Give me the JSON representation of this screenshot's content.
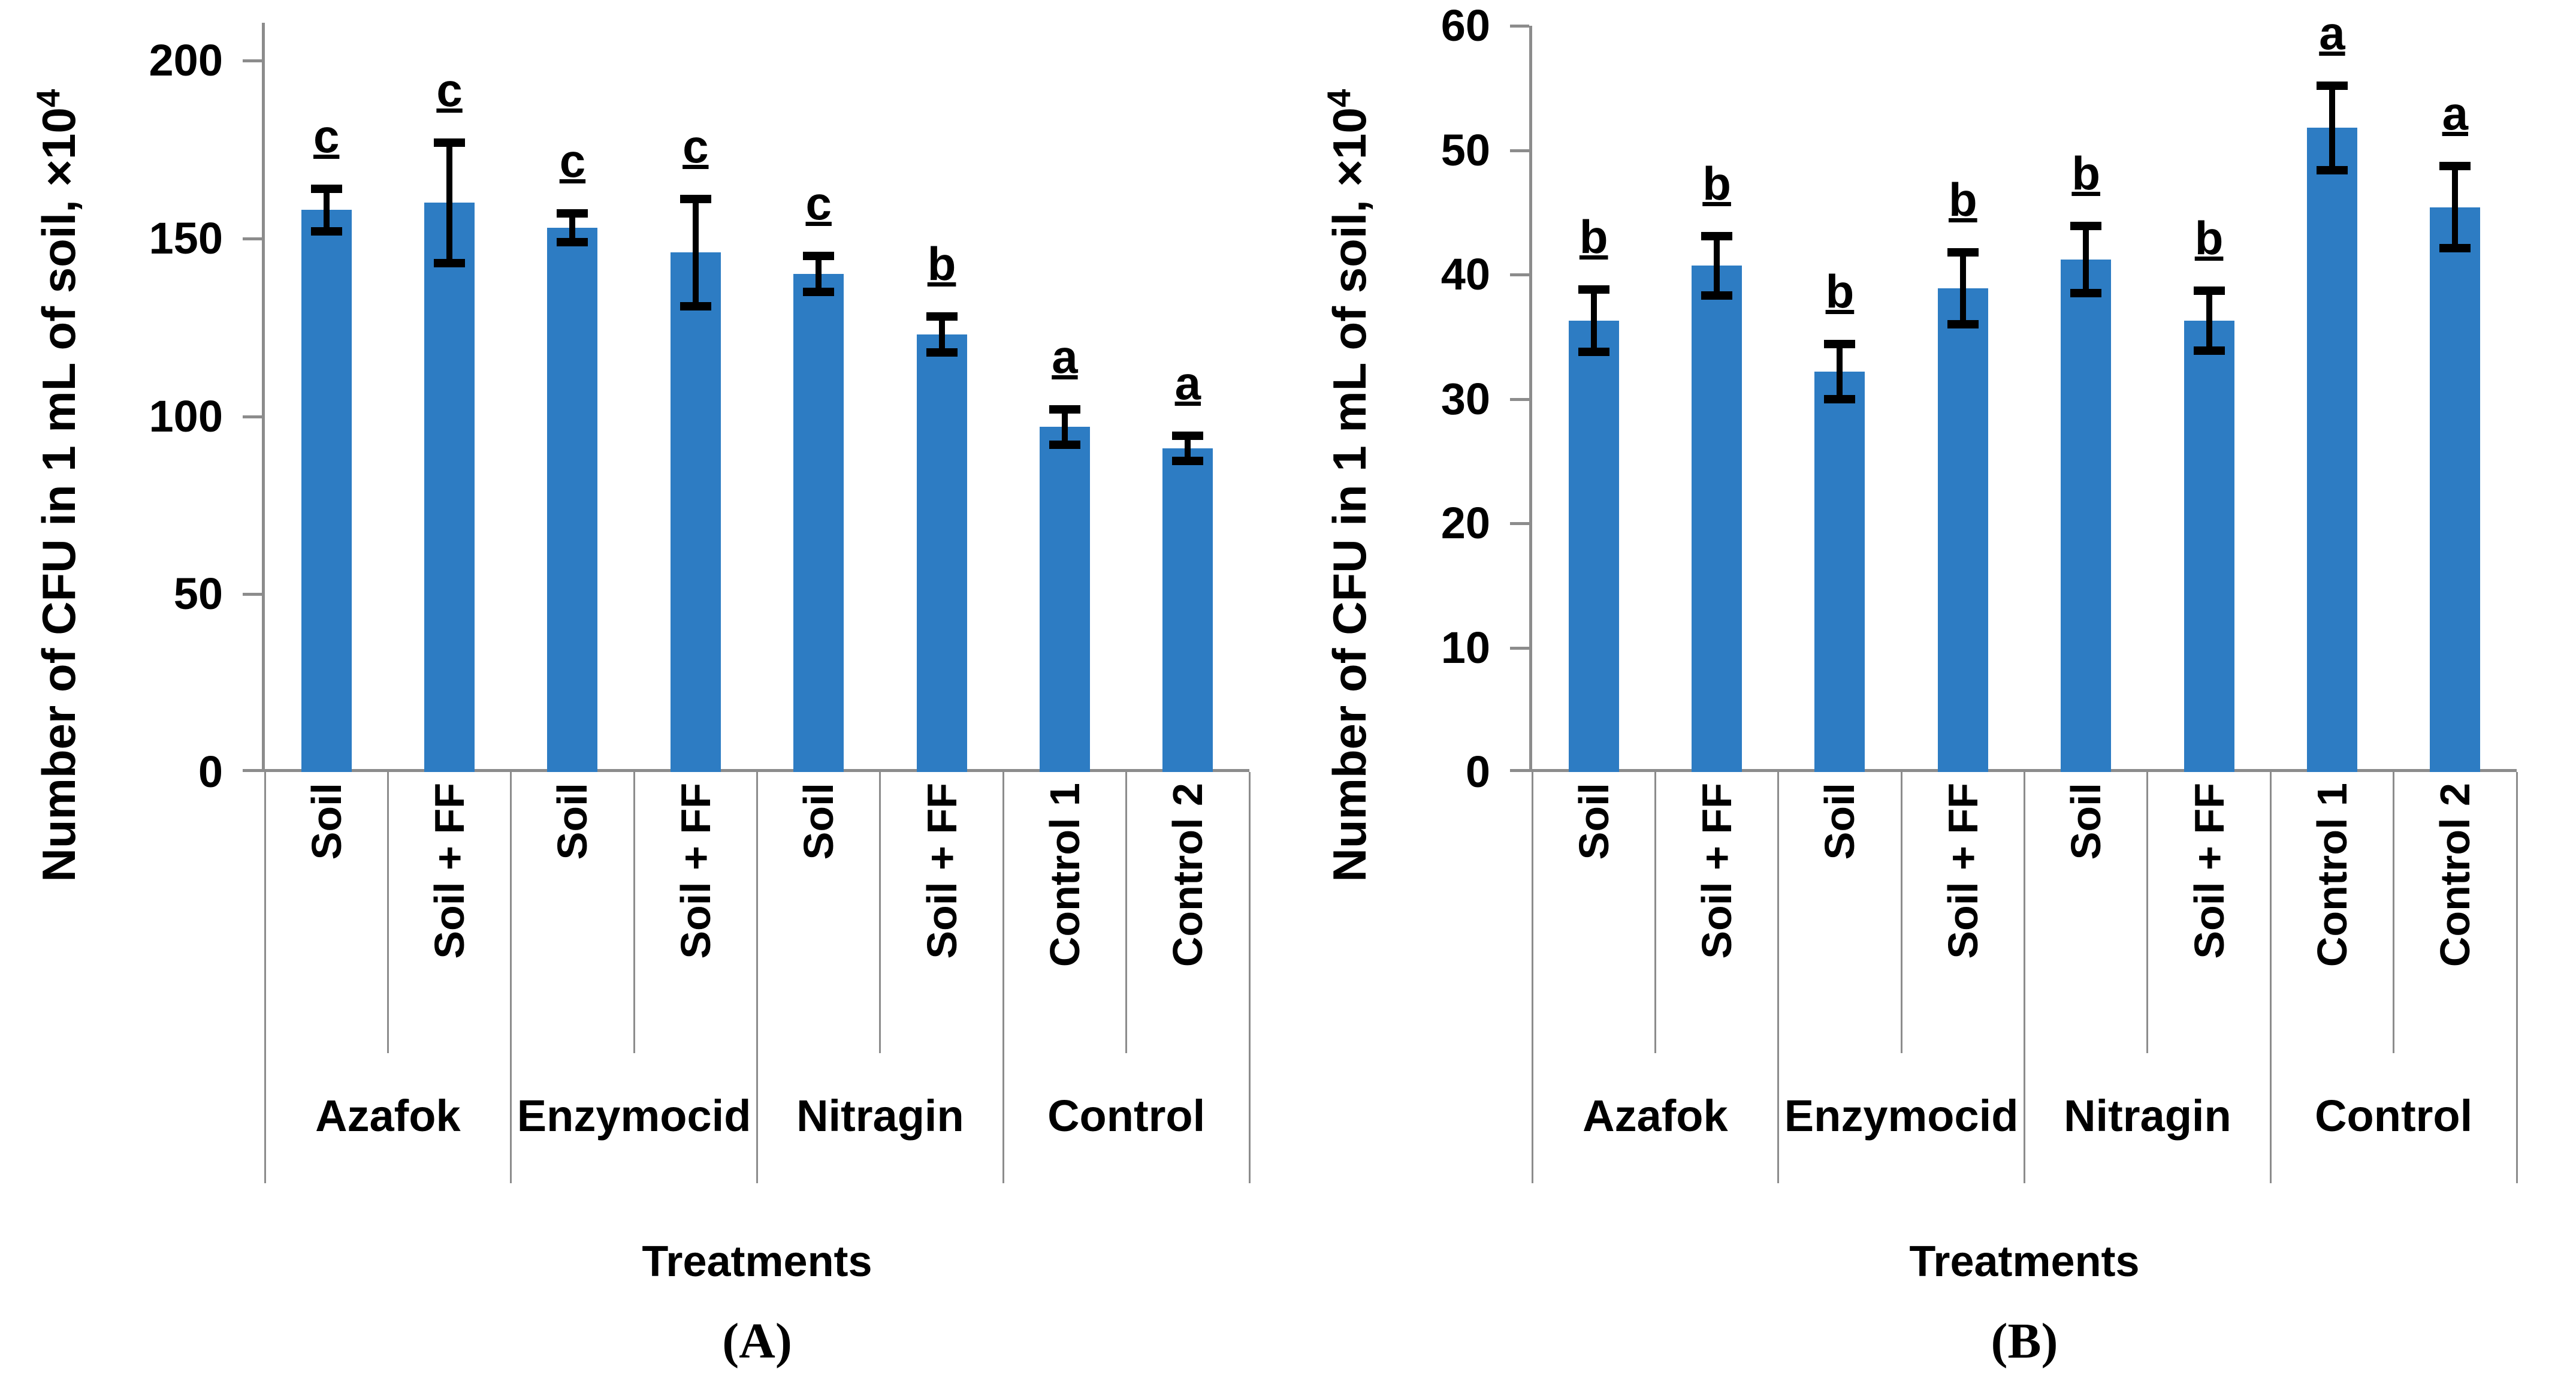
{
  "figure": {
    "background": "#ffffff",
    "bar_color": "#2d7cc3",
    "axis_color": "#8c8c8c",
    "error_bar_color": "#000000",
    "text_color": "#000000"
  },
  "chart_data": [
    {
      "type": "bar",
      "panel_caption": "(A)",
      "ylabel": "Number of CFU in 1 mL of soil, ×10⁴",
      "ylabel_base": "Number of CFU in 1 mL of soil, ×10",
      "ylabel_superscript": "4",
      "xlabel": "Treatments",
      "ylim": [
        0,
        200
      ],
      "yticks": [
        0,
        50,
        100,
        150,
        200
      ],
      "grid": false,
      "legend": null,
      "categories": [
        "Soil",
        "Soil + FF",
        "Soil",
        "Soil + FF",
        "Soil",
        "Soil + FF",
        "Control 1",
        "Control 2"
      ],
      "groups": [
        "Azafok",
        "Enzymocid",
        "Nitragin",
        "Control"
      ],
      "group_spans": [
        2,
        2,
        2,
        2
      ],
      "values": [
        158,
        160,
        153,
        146,
        140,
        123,
        97,
        91
      ],
      "errors": [
        6,
        17,
        4,
        15,
        5,
        5,
        5,
        3.5
      ],
      "sig_letters": [
        "c",
        "c",
        "c",
        "c",
        "c",
        "b",
        "a",
        "a"
      ]
    },
    {
      "type": "bar",
      "panel_caption": "(B)",
      "ylabel": "Number of CFU in 1 mL of soil, ×10⁴",
      "ylabel_base": "Number of CFU in 1 mL of soil, ×10",
      "ylabel_superscript": "4",
      "xlabel": "Treatments",
      "ylim": [
        0,
        60
      ],
      "yticks": [
        0,
        10,
        20,
        30,
        40,
        50,
        60
      ],
      "grid": false,
      "legend": null,
      "categories": [
        "Soil",
        "Soil + FF",
        "Soil",
        "Soil + FF",
        "Soil",
        "Soil + FF",
        "Control 1",
        "Control 2"
      ],
      "groups": [
        "Azafok",
        "Enzymocid",
        "Nitragin",
        "Control"
      ],
      "group_spans": [
        2,
        2,
        2,
        2
      ],
      "values": [
        36.3,
        40.7,
        32.2,
        38.9,
        41.2,
        36.3,
        51.8,
        45.4
      ],
      "errors": [
        2.5,
        2.4,
        2.2,
        2.9,
        2.7,
        2.4,
        3.4,
        3.3
      ],
      "sig_letters": [
        "b",
        "b",
        "b",
        "b",
        "b",
        "b",
        "a",
        "a"
      ]
    }
  ]
}
